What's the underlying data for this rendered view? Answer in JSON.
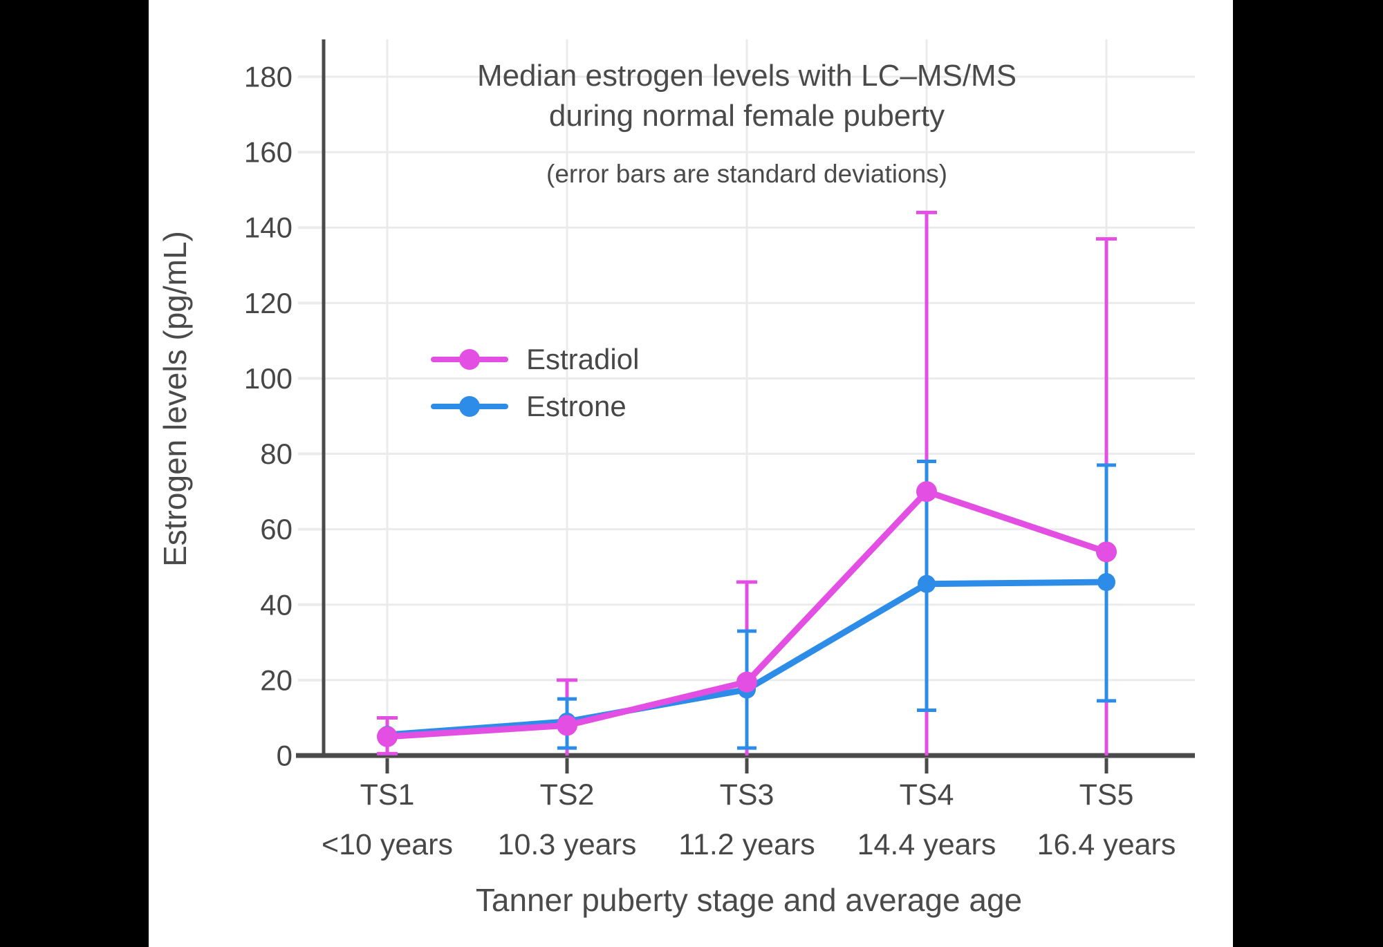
{
  "letterbox_color": "#000000",
  "panel": {
    "bg": "#FFFFFF"
  },
  "title": {
    "line1": "Median estrogen levels with LC–MS/MS",
    "line2": "during normal female puberty",
    "subtitle": "(error bars are standard deviations)"
  },
  "legend": {
    "items": [
      {
        "label": "Estradiol",
        "color": "#E34FE3"
      },
      {
        "label": "Estrone",
        "color": "#2E8CE9"
      }
    ]
  },
  "axes": {
    "y": {
      "label": "Estrogen levels (pg/mL)",
      "ticks": [
        0,
        20,
        40,
        60,
        80,
        100,
        120,
        140,
        160,
        180
      ],
      "range": [
        0,
        190
      ]
    },
    "x": {
      "label": "Tanner puberty stage and average age",
      "stages": [
        "TS1",
        "TS2",
        "TS3",
        "TS4",
        "TS5"
      ],
      "ages": [
        "<10 years",
        "10.3 years",
        "11.2 years",
        "14.4 years",
        "16.4 years"
      ]
    }
  },
  "chart_data": {
    "type": "line",
    "title": "Median estrogen levels with LC–MS/MS during normal female puberty",
    "subtitle": "(error bars are standard deviations)",
    "xlabel": "Tanner puberty stage and average age",
    "ylabel": "Estrogen levels (pg/mL)",
    "ylim": [
      0,
      190
    ],
    "ytick_step": 20,
    "grid": true,
    "legend_position": "inside-upper-left",
    "error_bar_meaning": "standard deviation",
    "categories": [
      "TS1 (<10 years)",
      "TS2 (10.3 years)",
      "TS3 (11.2 years)",
      "TS4 (14.4 years)",
      "TS5 (16.4 years)"
    ],
    "series": [
      {
        "name": "Estradiol",
        "color": "#E34FE3",
        "values": [
          5,
          8,
          19.5,
          70,
          54
        ],
        "sd_upper_cap": [
          10,
          20,
          46,
          144,
          137
        ],
        "sd_lower_cap": [
          0.5,
          0,
          0,
          0,
          0
        ],
        "lower_cap_visible": [
          true,
          false,
          false,
          false,
          false
        ]
      },
      {
        "name": "Estrone",
        "color": "#2E8CE9",
        "values": [
          5.5,
          9,
          17.5,
          45.5,
          46
        ],
        "sd_upper_cap": [
          null,
          15,
          33,
          78,
          77
        ],
        "sd_lower_cap": [
          null,
          2,
          2,
          12,
          14.5
        ],
        "lower_cap_visible": [
          false,
          true,
          true,
          true,
          true
        ]
      }
    ]
  },
  "style": {
    "text_color": "#474747",
    "axis_color": "#4A4A4A",
    "grid_color": "#EBEBEB"
  }
}
